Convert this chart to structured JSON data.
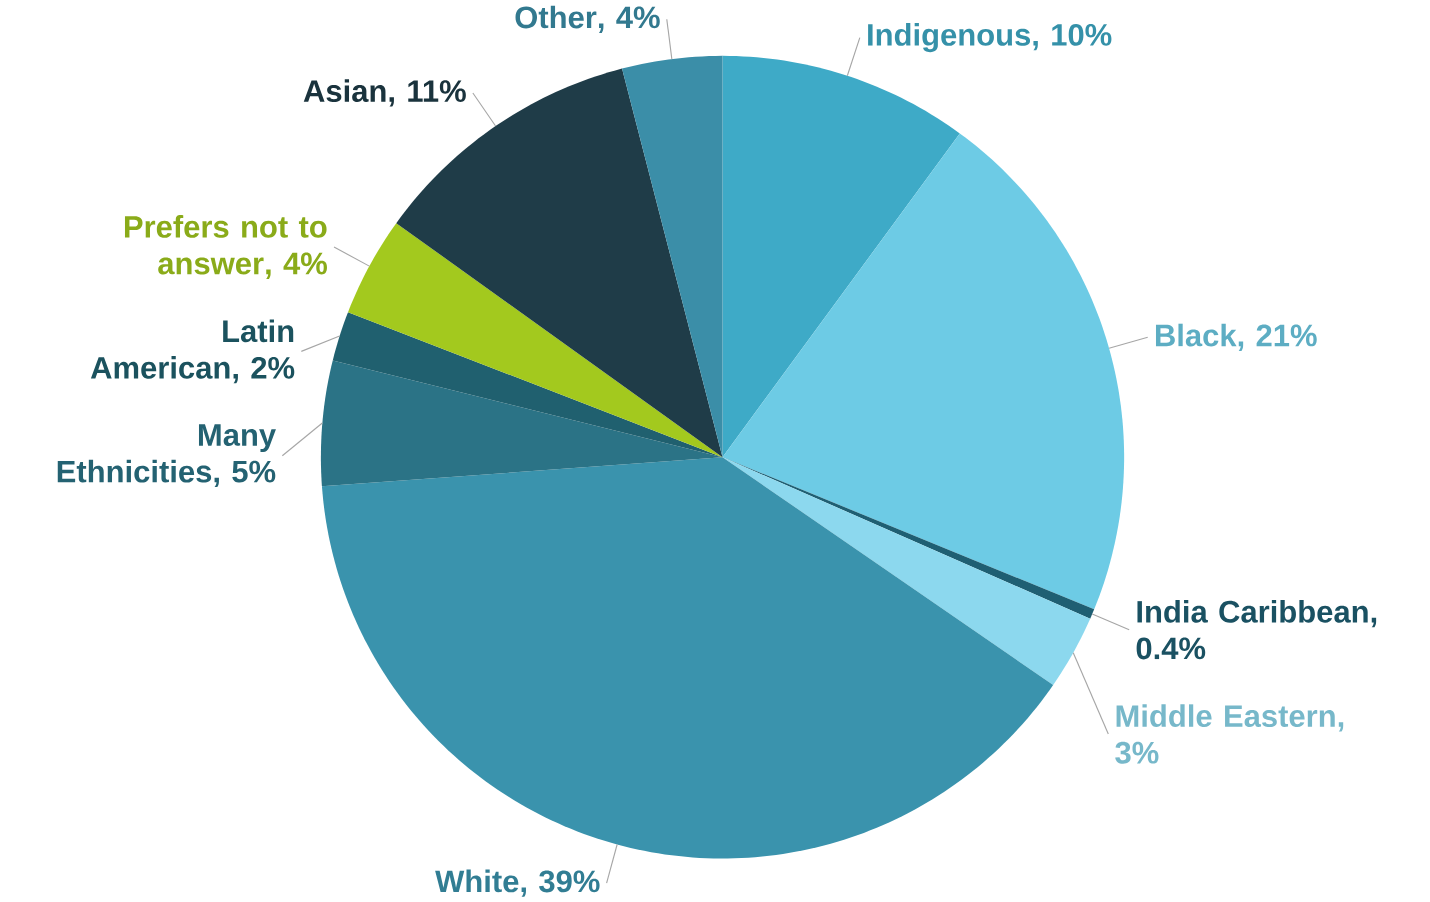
{
  "chart_data": {
    "type": "pie",
    "categories": [
      "Indigenous",
      "Black",
      "India Caribbean",
      "Middle Eastern",
      "White",
      "Many Ethnicities",
      "Latin American",
      "Prefers not to answer",
      "Asian",
      "Other"
    ],
    "values": [
      10,
      21,
      0.4,
      3,
      39,
      5,
      2,
      4,
      11,
      4
    ],
    "value_labels": [
      ", 10%",
      ", 21%",
      ", 0.4%",
      ", 3%",
      ", 39%",
      ", 5%",
      ", 2%",
      ", 4%",
      ", 11%",
      ", 4%"
    ],
    "colors": [
      "#3eaac7",
      "#6dcbe5",
      "#1f5f73",
      "#8cd8ee",
      "#3a93ad",
      "#2b7386",
      "#20606f",
      "#a3c91e",
      "#1f3c48",
      "#3b8ea8"
    ]
  }
}
